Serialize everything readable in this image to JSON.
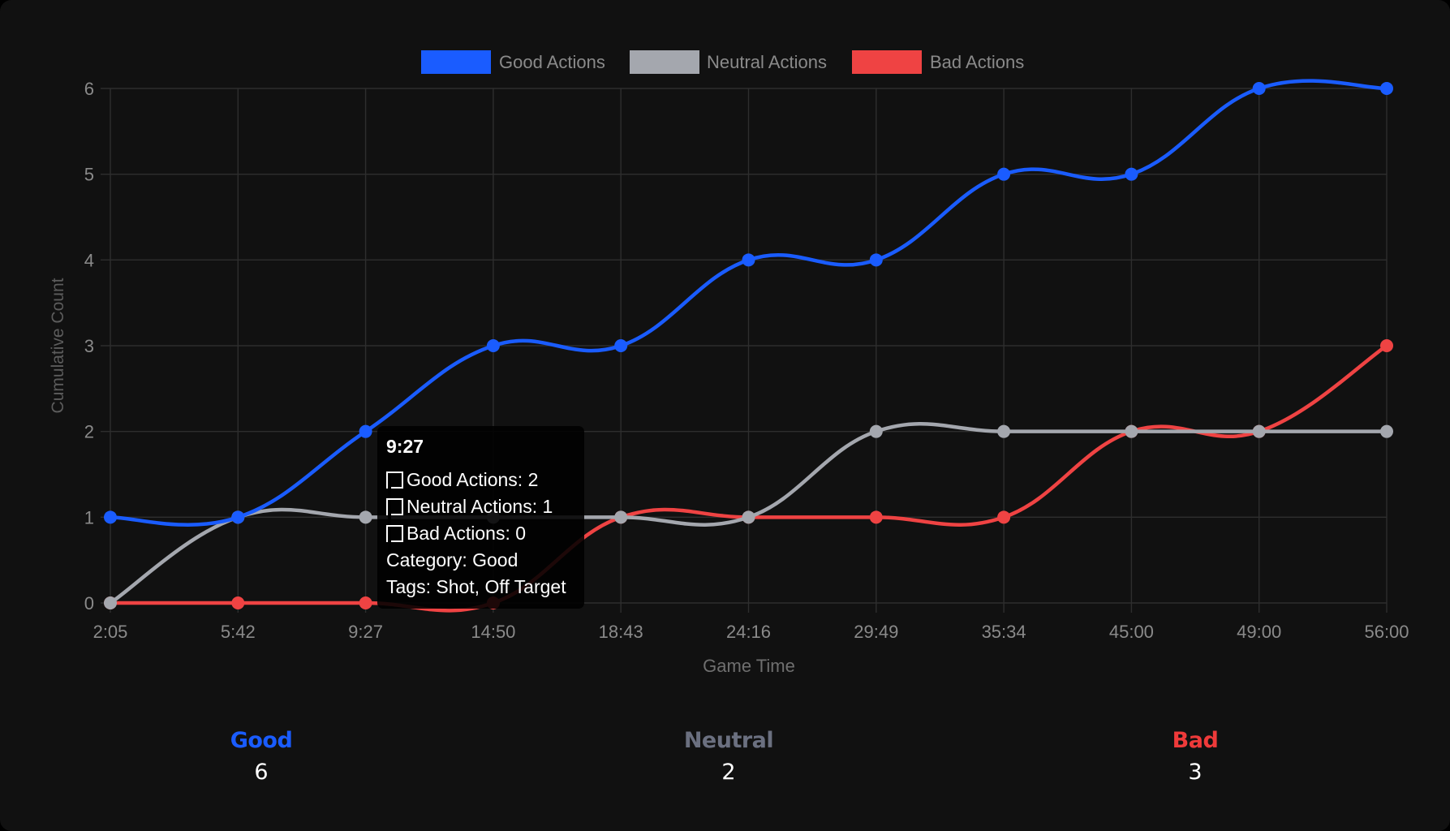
{
  "chart_data": {
    "type": "line",
    "title": "",
    "xlabel": "Game Time",
    "ylabel": "Cumulative Count",
    "categories": [
      "2:05",
      "5:42",
      "9:27",
      "14:50",
      "18:43",
      "24:16",
      "29:49",
      "35:34",
      "45:00",
      "49:00",
      "56:00"
    ],
    "ylim": [
      0,
      6
    ],
    "yticks": [
      "0",
      "1",
      "2",
      "3",
      "4",
      "5",
      "6"
    ],
    "grid": true,
    "legend_position": "top-center",
    "series": [
      {
        "name": "Good Actions",
        "color": "#1a5cff",
        "values": [
          1,
          1,
          2,
          3,
          3,
          4,
          4,
          5,
          5,
          6,
          6
        ]
      },
      {
        "name": "Neutral Actions",
        "color": "#a4a7ae",
        "values": [
          0,
          1,
          1,
          1,
          1,
          1,
          2,
          2,
          2,
          2,
          2
        ]
      },
      {
        "name": "Bad Actions",
        "color": "#ef4343",
        "values": [
          0,
          0,
          0,
          0,
          1,
          1,
          1,
          1,
          2,
          2,
          3
        ]
      }
    ]
  },
  "tooltip": {
    "title": "9:27",
    "lines": [
      "Good Actions: 2",
      "Neutral Actions: 1",
      "Bad Actions: 0"
    ],
    "category": "Category: Good",
    "tags": "Tags: Shot, Off Target"
  },
  "summary": {
    "good": {
      "label": "Good",
      "value": "6",
      "color": "#1a5cff"
    },
    "neutral": {
      "label": "Neutral",
      "value": "2",
      "color": "#6b7080"
    },
    "bad": {
      "label": "Bad",
      "value": "3",
      "color": "#ef3a3a"
    }
  }
}
